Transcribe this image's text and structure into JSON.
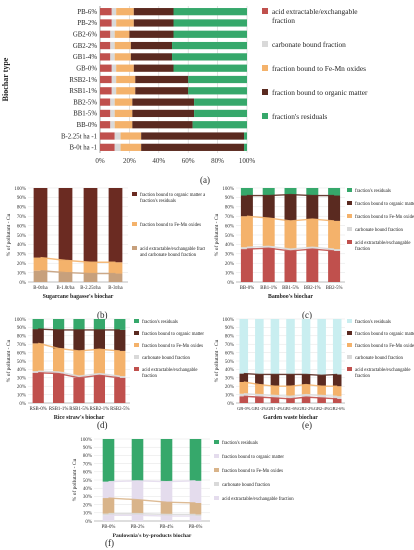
{
  "colors": {
    "acid": "#c0504d",
    "carbonate": "#d9d9d9",
    "femn": "#f4b26b",
    "organic": "#5a2a20",
    "residual": "#36a86b",
    "mix_org_res": "#6b2b22",
    "mix_acid_carb": "#c7a07c",
    "light_teal": "#c9eef0",
    "light_lilac": "#e4dced",
    "light_green_bg": "#dff2e6",
    "tan": "#d9b48a"
  },
  "panel_labels": {
    "a": "(a)",
    "b": "(b)",
    "c": "(c)",
    "d": "(d)",
    "e": "(e)",
    "f": "(f)"
  },
  "chart_data": [
    {
      "id": "a",
      "type": "bar",
      "orientation": "horizontal",
      "stacked": true,
      "ylabel": "Biochar type",
      "categories": [
        "PB-6%",
        "PB-2%",
        "GB2-6%",
        "GB2-2%",
        "GB1-4%",
        "GB-0%",
        "RSB2-1%",
        "RSB1-1%",
        "BB2-5%",
        "BB1-5%",
        "BB-0%",
        "B-2.25t ha -1",
        "B-0t ha -1"
      ],
      "xticks": [
        "0%",
        "20%",
        "40%",
        "60%",
        "80%",
        "100%"
      ],
      "series": [
        {
          "name": "acid extractable/exchangable fraction",
          "color_key": "acid",
          "values": [
            8,
            8,
            7,
            7,
            7,
            8,
            8,
            8,
            7,
            7,
            7,
            10,
            10
          ]
        },
        {
          "name": "carbonate bound fraction",
          "color_key": "carbonate",
          "values": [
            3,
            3,
            3,
            3,
            3,
            3,
            3,
            3,
            3,
            3,
            3,
            4,
            4
          ]
        },
        {
          "name": "fraction bound to Fe-Mn oxides",
          "color_key": "femn",
          "values": [
            12,
            12,
            10,
            11,
            11,
            12,
            13,
            13,
            12,
            12,
            12,
            14,
            14
          ]
        },
        {
          "name": "fraction bound to organic matter",
          "color_key": "organic",
          "values": [
            27,
            27,
            30,
            28,
            28,
            27,
            36,
            36,
            42,
            42,
            41,
            70,
            70
          ]
        },
        {
          "name": "fraction's residuals",
          "color_key": "residual",
          "values": [
            50,
            50,
            50,
            51,
            51,
            50,
            40,
            40,
            36,
            36,
            37,
            2,
            2
          ]
        }
      ],
      "legend_position": "right"
    },
    {
      "id": "b",
      "type": "bar",
      "stacked": true,
      "xlabel": "Sugarcane bagasse's biochar",
      "ylabel": "% of pollutant - Cu",
      "categories": [
        "B-0t/ha",
        "B-1.0t/ha",
        "B-2.25t/ha",
        "B-3t/ha"
      ],
      "yticks": [
        "0%",
        "10%",
        "20%",
        "30%",
        "40%",
        "50%",
        "60%",
        "70%",
        "80%",
        "90%",
        "100%"
      ],
      "series": [
        {
          "name": "acid extractable/exchangable fraction and carbonate bound fraction",
          "color_key": "mix_acid_carb",
          "values": [
            12,
            10,
            9,
            9
          ]
        },
        {
          "name": "fraction bound to Fe-Mn oxides",
          "color_key": "femn",
          "values": [
            14,
            13,
            12,
            12
          ]
        },
        {
          "name": "fraction bound to organic matter and fraction's residuals",
          "color_key": "mix_org_res",
          "values": [
            74,
            77,
            79,
            79
          ]
        }
      ],
      "legend_position": "right"
    },
    {
      "id": "c",
      "type": "bar",
      "stacked": true,
      "xlabel": "Bamboo's biochar",
      "ylabel": "% of pollutant - Cu",
      "categories": [
        "BB-0%",
        "BB1-1%",
        "BB1-5%",
        "BB2-1%",
        "BB2-5%"
      ],
      "yticks": [
        "0%",
        "10%",
        "20%",
        "30%",
        "40%",
        "50%",
        "60%",
        "70%",
        "80%",
        "90%",
        "100%"
      ],
      "series": [
        {
          "name": "acid extractable/exchangable fraction",
          "color_key": "acid",
          "values": [
            35,
            36,
            33,
            35,
            33
          ]
        },
        {
          "name": "carbonate bound fraction",
          "color_key": "carbonate",
          "values": [
            2,
            2,
            2,
            2,
            2
          ]
        },
        {
          "name": "fraction bound to Fe-Mn oxides",
          "color_key": "femn",
          "values": [
            33,
            30,
            30,
            30,
            30
          ]
        },
        {
          "name": "fraction bound to organic matter",
          "color_key": "organic",
          "values": [
            22,
            24,
            28,
            25,
            27
          ]
        },
        {
          "name": "fraction's residuals",
          "color_key": "residual",
          "values": [
            8,
            8,
            7,
            8,
            8
          ]
        }
      ],
      "legend_position": "right"
    },
    {
      "id": "d",
      "type": "bar",
      "stacked": true,
      "xlabel": "Rice straw's biochar",
      "ylabel": "% of pollutant - Cu",
      "categories": [
        "RSB-0%",
        "RSB1-1%",
        "RSB1-5%",
        "RSB2-1%",
        "RSB2-5%"
      ],
      "yticks": [
        "0%",
        "10%",
        "20%",
        "30%",
        "40%",
        "50%",
        "60%",
        "70%",
        "80%",
        "90%",
        "100%"
      ],
      "series": [
        {
          "name": "acid extractable/exchangable fraction",
          "color_key": "acid",
          "values": [
            36,
            35,
            30,
            33,
            30
          ]
        },
        {
          "name": "carbonate bound fraction",
          "color_key": "carbonate",
          "values": [
            2,
            2,
            2,
            2,
            2
          ]
        },
        {
          "name": "fraction bound to Fe-Mn oxides",
          "color_key": "femn",
          "values": [
            33,
            28,
            30,
            29,
            30
          ]
        },
        {
          "name": "fraction bound to organic matter",
          "color_key": "organic",
          "values": [
            17,
            22,
            25,
            23,
            25
          ]
        },
        {
          "name": "fraction's residuals",
          "color_key": "residual",
          "values": [
            12,
            13,
            13,
            13,
            13
          ]
        }
      ],
      "legend_position": "right"
    },
    {
      "id": "e",
      "type": "bar",
      "stacked": true,
      "xlabel": "Garden waste biochar",
      "ylabel": "% of pollutant - Cu",
      "categories": [
        "GB-0%",
        "GB1-2%",
        "GB1-4%",
        "GB1-6%",
        "GB2-2%",
        "GB2-4%",
        "GB2-6%"
      ],
      "yticks": [
        "0%",
        "10%",
        "20%",
        "30%",
        "40%",
        "50%",
        "60%",
        "70%",
        "80%",
        "90%",
        "100%"
      ],
      "series": [
        {
          "name": "acid extractable/exchangable fraction",
          "color_key": "acid",
          "values": [
            8,
            7,
            6,
            5,
            7,
            6,
            5
          ]
        },
        {
          "name": "carbonate bound fraction",
          "color_key": "carbonate",
          "values": [
            3,
            3,
            3,
            3,
            3,
            3,
            3
          ]
        },
        {
          "name": "fraction bound to Fe-Mn oxides",
          "color_key": "femn",
          "values": [
            14,
            12,
            11,
            12,
            12,
            11,
            12
          ]
        },
        {
          "name": "fraction bound to organic matter",
          "color_key": "organic",
          "values": [
            10,
            12,
            14,
            14,
            12,
            13,
            14
          ]
        },
        {
          "name": "fraction's residuals",
          "color_key": "light_teal",
          "values": [
            65,
            66,
            66,
            66,
            66,
            67,
            66
          ]
        }
      ],
      "legend_position": "right"
    },
    {
      "id": "f",
      "type": "bar",
      "stacked": true,
      "xlabel": "Paulownia's by-products biochar",
      "ylabel": "% of pollutant - Cu",
      "categories": [
        "PB-0%",
        "PB-2%",
        "PB-4%",
        "PB-6%"
      ],
      "yticks": [
        "0%",
        "10%",
        "20%",
        "30%",
        "40%",
        "50%",
        "60%",
        "70%",
        "80%",
        "90%",
        "100%"
      ],
      "series": [
        {
          "name": "acid extractable/exchangable fraction",
          "color_key": "light_lilac",
          "values": [
            7,
            7,
            6,
            6
          ]
        },
        {
          "name": "carbonate bound fraction",
          "color_key": "carbonate",
          "values": [
            2,
            2,
            2,
            2
          ]
        },
        {
          "name": "fraction bound to Fe-Mn oxides",
          "color_key": "tan",
          "values": [
            19,
            17,
            15,
            14
          ]
        },
        {
          "name": "fraction bound to organic matter",
          "color_key": "light_lilac",
          "values": [
            20,
            23,
            25,
            27
          ]
        },
        {
          "name": "fraction's residuals",
          "color_key": "residual",
          "values": [
            52,
            51,
            52,
            51
          ]
        }
      ],
      "legend_position": "right"
    }
  ]
}
